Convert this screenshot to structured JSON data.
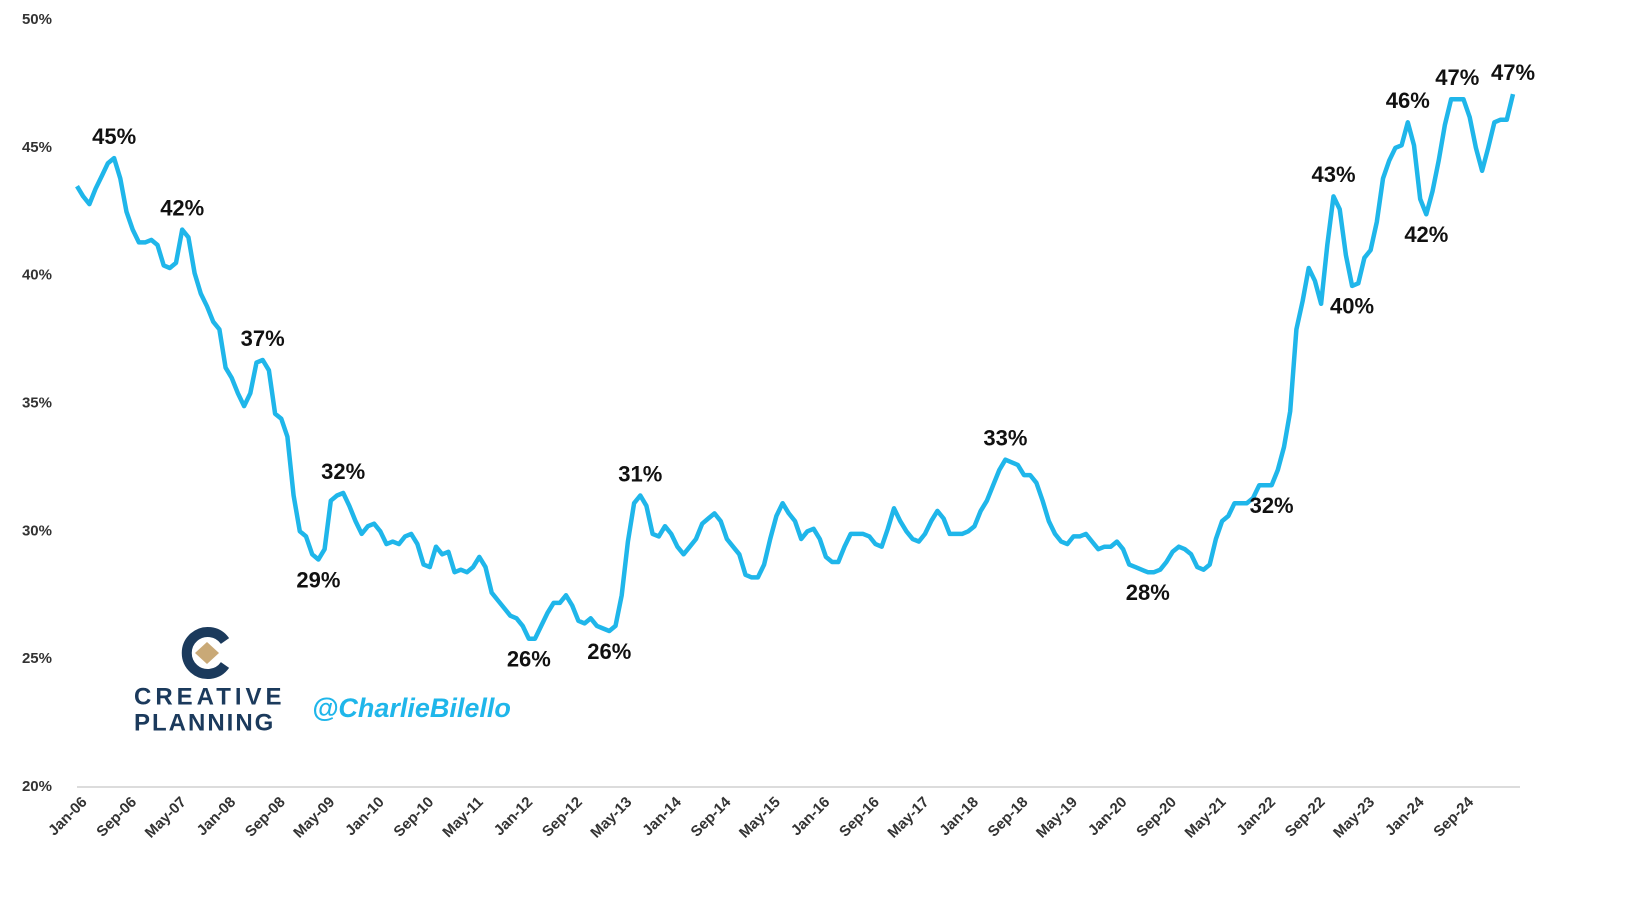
{
  "chart_data": {
    "type": "line",
    "categories": [
      "Jan-06",
      null,
      null,
      null,
      null,
      null,
      null,
      null,
      "Sep-06",
      null,
      null,
      null,
      null,
      null,
      null,
      null,
      "May-07",
      null,
      null,
      null,
      null,
      null,
      null,
      null,
      "Jan-08",
      null,
      null,
      null,
      null,
      null,
      null,
      null,
      "Sep-08",
      null,
      null,
      null,
      null,
      null,
      null,
      null,
      "May-09",
      null,
      null,
      null,
      null,
      null,
      null,
      null,
      "Jan-10",
      null,
      null,
      null,
      null,
      null,
      null,
      null,
      "Sep-10",
      null,
      null,
      null,
      null,
      null,
      null,
      null,
      "May-11",
      null,
      null,
      null,
      null,
      null,
      null,
      null,
      "Jan-12",
      null,
      null,
      null,
      null,
      null,
      null,
      null,
      "Sep-12",
      null,
      null,
      null,
      null,
      null,
      null,
      null,
      "May-13",
      null,
      null,
      null,
      null,
      null,
      null,
      null,
      "Jan-14",
      null,
      null,
      null,
      null,
      null,
      null,
      null,
      "Sep-14",
      null,
      null,
      null,
      null,
      null,
      null,
      null,
      "May-15",
      null,
      null,
      null,
      null,
      null,
      null,
      null,
      "Jan-16",
      null,
      null,
      null,
      null,
      null,
      null,
      null,
      "Sep-16",
      null,
      null,
      null,
      null,
      null,
      null,
      null,
      "May-17",
      null,
      null,
      null,
      null,
      null,
      null,
      null,
      "Jan-18",
      null,
      null,
      null,
      null,
      null,
      null,
      null,
      "Sep-18",
      null,
      null,
      null,
      null,
      null,
      null,
      null,
      "May-19",
      null,
      null,
      null,
      null,
      null,
      null,
      null,
      "Jan-20",
      null,
      null,
      null,
      null,
      null,
      null,
      null,
      "Sep-20",
      null,
      null,
      null,
      null,
      null,
      null,
      null,
      "May-21",
      null,
      null,
      null,
      null,
      null,
      null,
      null,
      "Jan-22",
      null,
      null,
      null,
      null,
      null,
      null,
      null,
      "Sep-22",
      null,
      null,
      null,
      null,
      null,
      null,
      null,
      "May-23",
      null,
      null,
      null,
      null,
      null,
      null,
      null,
      "Jan-24",
      null,
      null,
      null,
      null,
      null,
      null,
      null,
      "Sep-24",
      null,
      null,
      null,
      null,
      null,
      null,
      null,
      null
    ],
    "values": [
      43.5,
      43.1,
      42.8,
      43.4,
      43.9,
      44.4,
      44.6,
      43.8,
      42.5,
      41.8,
      41.3,
      41.3,
      41.4,
      41.2,
      40.4,
      40.3,
      40.5,
      41.8,
      41.5,
      40.1,
      39.3,
      38.8,
      38.2,
      37.9,
      36.4,
      36,
      35.4,
      34.9,
      35.4,
      36.6,
      36.7,
      36.3,
      34.6,
      34.4,
      33.7,
      31.4,
      30,
      29.8,
      29.1,
      28.9,
      29.3,
      31.2,
      31.4,
      31.5,
      31,
      30.4,
      29.9,
      30.2,
      30.3,
      30,
      29.5,
      29.6,
      29.5,
      29.8,
      29.9,
      29.5,
      28.7,
      28.6,
      29.4,
      29.1,
      29.2,
      28.4,
      28.5,
      28.4,
      28.6,
      29,
      28.6,
      27.6,
      27.3,
      27,
      26.7,
      26.6,
      26.3,
      25.8,
      25.8,
      26.3,
      26.8,
      27.2,
      27.2,
      27.5,
      27.1,
      26.5,
      26.4,
      26.6,
      26.3,
      26.2,
      26.1,
      26.3,
      27.5,
      29.6,
      31.1,
      31.4,
      31,
      29.9,
      29.8,
      30.2,
      29.9,
      29.4,
      29.1,
      29.4,
      29.7,
      30.3,
      30.5,
      30.7,
      30.4,
      29.7,
      29.4,
      29.1,
      28.3,
      28.2,
      28.2,
      28.7,
      29.7,
      30.6,
      31.1,
      30.7,
      30.4,
      29.7,
      30,
      30.1,
      29.7,
      29,
      28.8,
      28.8,
      29.4,
      29.9,
      29.9,
      29.9,
      29.8,
      29.5,
      29.4,
      30.1,
      30.9,
      30.4,
      30,
      29.7,
      29.6,
      29.9,
      30.4,
      30.8,
      30.5,
      29.9,
      29.9,
      29.9,
      30,
      30.2,
      30.8,
      31.2,
      31.8,
      32.4,
      32.8,
      32.7,
      32.6,
      32.2,
      32.2,
      31.9,
      31.2,
      30.4,
      29.9,
      29.6,
      29.5,
      29.8,
      29.8,
      29.9,
      29.6,
      29.3,
      29.4,
      29.4,
      29.6,
      29.3,
      28.7,
      28.6,
      28.5,
      28.4,
      28.4,
      28.5,
      28.8,
      29.2,
      29.4,
      29.3,
      29.1,
      28.6,
      28.5,
      28.7,
      29.7,
      30.4,
      30.6,
      31.1,
      31.1,
      31.1,
      31.3,
      31.8,
      31.8,
      31.8,
      32.4,
      33.3,
      34.7,
      37.9,
      39,
      40.3,
      39.8,
      38.9,
      41.2,
      43.1,
      42.6,
      40.8,
      39.6,
      39.7,
      40.7,
      41,
      42.1,
      43.8,
      44.5,
      45,
      45.1,
      46,
      45.1,
      43,
      42.4,
      43.3,
      44.5,
      45.9,
      46.9,
      46.9,
      46.9,
      46.2,
      45,
      44.1,
      45,
      46,
      46.1,
      46.1,
      47.1
    ],
    "value_labels": [
      null,
      null,
      null,
      null,
      null,
      null,
      "45%",
      null,
      null,
      null,
      null,
      null,
      null,
      null,
      null,
      null,
      null,
      "42%",
      null,
      null,
      null,
      null,
      null,
      null,
      null,
      null,
      null,
      null,
      null,
      null,
      "37%",
      null,
      null,
      null,
      null,
      null,
      null,
      null,
      null,
      "29%",
      null,
      null,
      null,
      "32%",
      null,
      null,
      null,
      null,
      null,
      null,
      null,
      null,
      null,
      null,
      null,
      null,
      null,
      null,
      null,
      null,
      null,
      null,
      null,
      null,
      null,
      null,
      null,
      null,
      null,
      null,
      null,
      null,
      null,
      "26%",
      null,
      null,
      null,
      null,
      null,
      null,
      null,
      null,
      null,
      null,
      null,
      null,
      "26%",
      null,
      null,
      null,
      null,
      "31%",
      null,
      null,
      null,
      null,
      null,
      null,
      null,
      null,
      null,
      null,
      null,
      null,
      null,
      null,
      null,
      null,
      null,
      null,
      null,
      null,
      null,
      null,
      null,
      null,
      null,
      null,
      null,
      null,
      null,
      null,
      null,
      null,
      null,
      null,
      null,
      null,
      null,
      null,
      null,
      null,
      null,
      null,
      null,
      null,
      null,
      null,
      null,
      null,
      null,
      null,
      null,
      null,
      null,
      null,
      null,
      null,
      null,
      null,
      "33%",
      null,
      null,
      null,
      null,
      null,
      null,
      null,
      null,
      null,
      null,
      null,
      null,
      null,
      null,
      null,
      null,
      null,
      null,
      null,
      null,
      null,
      null,
      "28%",
      null,
      null,
      null,
      null,
      null,
      null,
      null,
      null,
      null,
      null,
      null,
      null,
      null,
      null,
      null,
      null,
      null,
      null,
      null,
      "32%",
      null,
      null,
      null,
      null,
      null,
      null,
      null,
      null,
      null,
      "43%",
      null,
      null,
      "40%",
      null,
      null,
      null,
      null,
      null,
      null,
      null,
      null,
      "46%",
      null,
      null,
      "42%",
      null,
      null,
      null,
      null,
      "47%",
      null,
      null,
      null,
      null,
      null,
      null,
      null,
      null,
      "47%"
    ],
    "color": "#1fb6ea",
    "ylim": [
      20,
      50
    ],
    "yticks": [
      {
        "value": 20,
        "label": "20%"
      },
      {
        "value": 25,
        "label": "25%"
      },
      {
        "value": 30,
        "label": "30%"
      },
      {
        "value": 35,
        "label": "35%"
      },
      {
        "value": 40,
        "label": "40%"
      },
      {
        "value": 45,
        "label": "45%"
      },
      {
        "value": 50,
        "label": "50%"
      }
    ],
    "grid": false,
    "watermark": {
      "brand_line1": "CREATIVE",
      "brand_line2": "PLANNING",
      "handle": "@CharlieBilello"
    }
  }
}
